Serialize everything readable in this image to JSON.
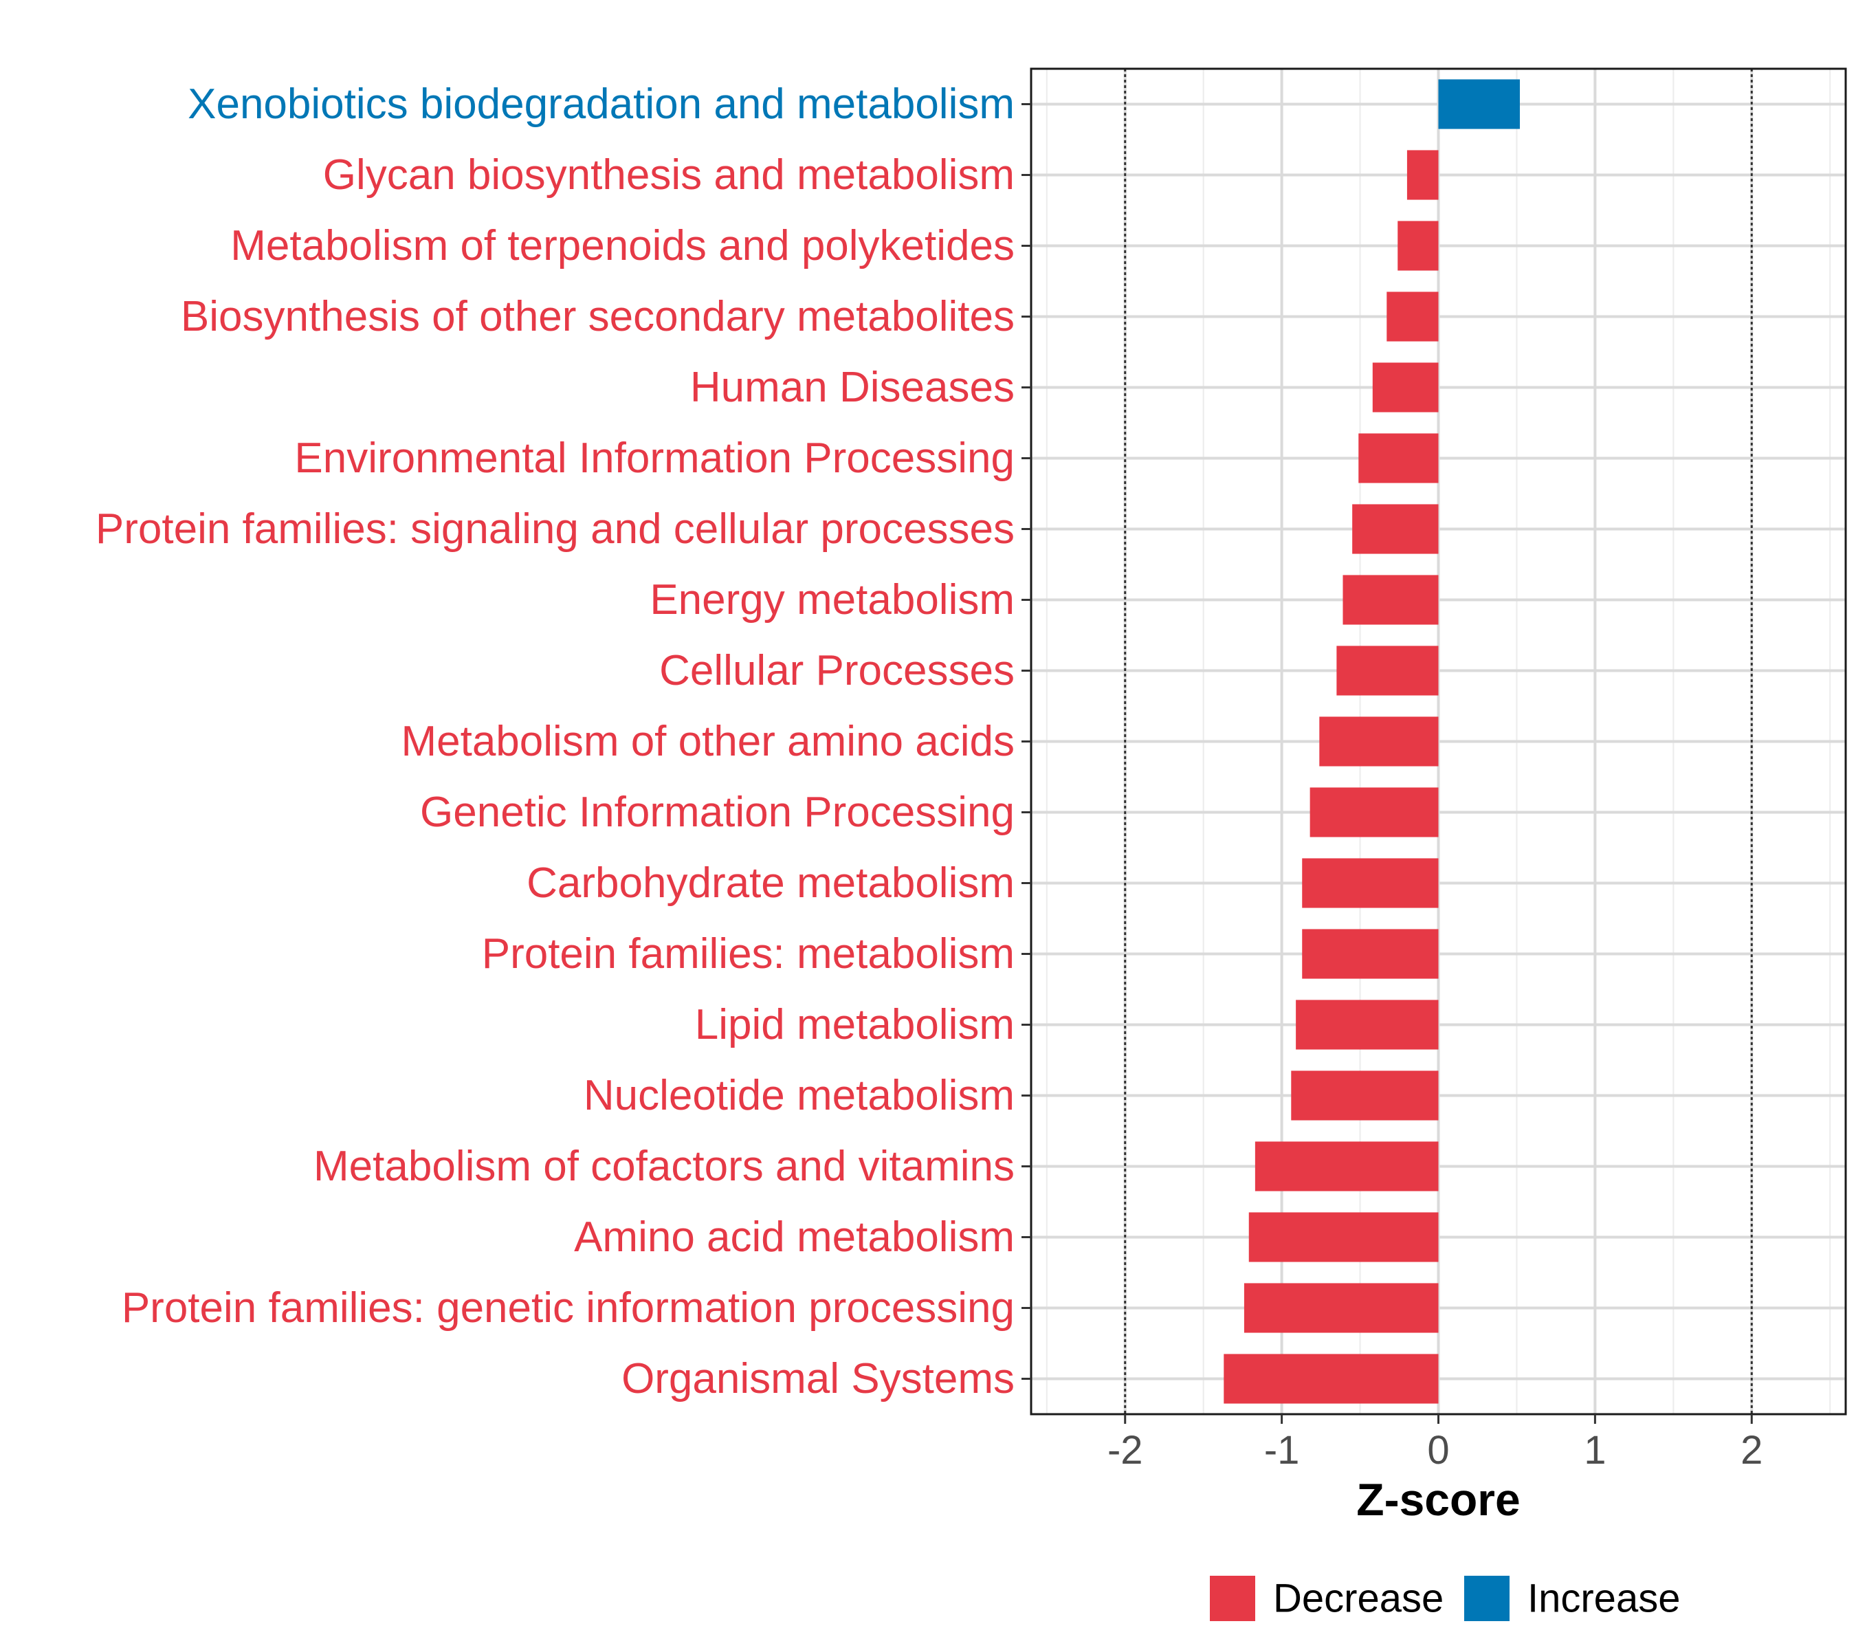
{
  "chart_data": {
    "type": "bar",
    "orientation": "horizontal",
    "title": "",
    "xlabel": "Z-score",
    "ylabel": "",
    "xlim": [
      -2.6,
      2.6
    ],
    "x_ticks": [
      -2,
      -1,
      0,
      1,
      2
    ],
    "x_tick_labels": [
      "-2",
      "-1",
      "0",
      "1",
      "2"
    ],
    "reference_lines": [
      -2,
      2
    ],
    "grid": true,
    "legend_position": "bottom",
    "colors": {
      "Decrease": "#E63946",
      "Increase": "#0077B6"
    },
    "categories": [
      "Xenobiotics biodegradation and metabolism",
      "Glycan biosynthesis and metabolism",
      "Metabolism of terpenoids and polyketides",
      "Biosynthesis of other secondary metabolites",
      "Human Diseases",
      "Environmental Information Processing",
      "Protein families: signaling and cellular processes",
      "Energy metabolism",
      "Cellular Processes",
      "Metabolism of other amino acids",
      "Genetic Information Processing",
      "Carbohydrate metabolism",
      "Protein families: metabolism",
      "Lipid metabolism",
      "Nucleotide metabolism",
      "Metabolism of cofactors and vitamins",
      "Amino acid metabolism",
      "Protein families: genetic information processing",
      "Organismal Systems"
    ],
    "values": [
      0.52,
      -0.2,
      -0.26,
      -0.33,
      -0.42,
      -0.51,
      -0.55,
      -0.61,
      -0.65,
      -0.76,
      -0.82,
      -0.87,
      -0.87,
      -0.91,
      -0.94,
      -1.17,
      -1.21,
      -1.24,
      -1.37
    ],
    "groups": [
      "Increase",
      "Decrease",
      "Decrease",
      "Decrease",
      "Decrease",
      "Decrease",
      "Decrease",
      "Decrease",
      "Decrease",
      "Decrease",
      "Decrease",
      "Decrease",
      "Decrease",
      "Decrease",
      "Decrease",
      "Decrease",
      "Decrease",
      "Decrease",
      "Decrease"
    ],
    "legend": [
      {
        "label": "Decrease",
        "color": "#E63946"
      },
      {
        "label": "Increase",
        "color": "#0077B6"
      }
    ]
  }
}
